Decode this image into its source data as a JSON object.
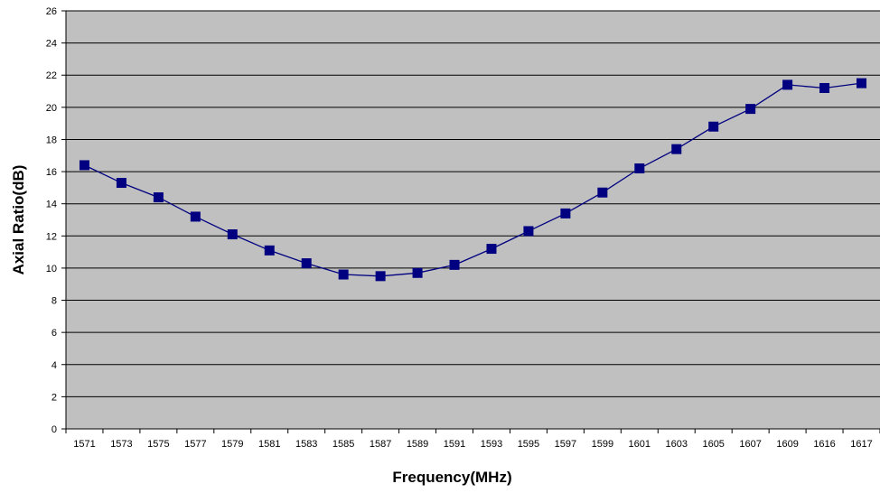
{
  "chart_data": {
    "type": "line",
    "title": "",
    "xlabel": "Frequency(MHz)",
    "ylabel": "Axial  Ratio(dB)",
    "categories": [
      "1571",
      "1573",
      "1575",
      "1577",
      "1579",
      "1581",
      "1583",
      "1585",
      "1587",
      "1589",
      "1591",
      "1593",
      "1595",
      "1597",
      "1599",
      "1601",
      "1603",
      "1605",
      "1607",
      "1609",
      "1616",
      "1617"
    ],
    "series": [
      {
        "values": [
          16.4,
          15.3,
          14.4,
          13.2,
          12.1,
          11.1,
          10.3,
          9.6,
          9.5,
          9.7,
          10.2,
          11.2,
          12.3,
          13.4,
          14.7,
          16.2,
          17.4,
          18.8,
          19.9,
          21.4,
          21.2,
          21.5
        ],
        "color": "#000080",
        "marker": "square"
      }
    ],
    "ylim": [
      0,
      26
    ],
    "yticks": [
      0,
      2,
      4,
      6,
      8,
      10,
      12,
      14,
      16,
      18,
      20,
      22,
      24,
      26
    ],
    "grid": true,
    "plot_background": "#c0c0c0",
    "gridline_color": "#000000",
    "legend": "none"
  }
}
